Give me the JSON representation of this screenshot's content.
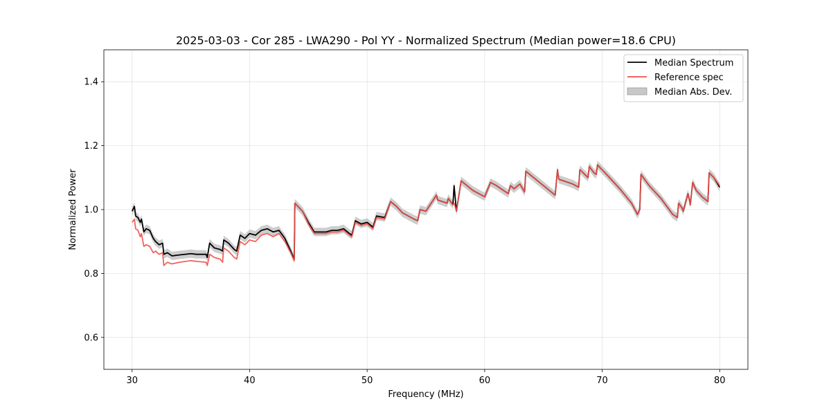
{
  "chart_data": {
    "type": "line",
    "title": "2025-03-03 - Cor 285 - LWA290 - Pol YY - Normalized Spectrum (Median power=18.6 CPU)",
    "xlabel": "Frequency (MHz)",
    "ylabel": "Normalized Power",
    "xlim": [
      27.6,
      82.4
    ],
    "ylim": [
      0.5,
      1.5
    ],
    "xticks": [
      30,
      40,
      50,
      60,
      70,
      80
    ],
    "yticks": [
      0.6,
      0.8,
      1.0,
      1.2,
      1.4
    ],
    "xtick_labels": [
      "30",
      "40",
      "50",
      "60",
      "70",
      "80"
    ],
    "ytick_labels": [
      "0.6",
      "0.8",
      "1.0",
      "1.2",
      "1.4"
    ],
    "grid": true,
    "legend": {
      "position": "top-right",
      "entries": [
        {
          "label": "Median Spectrum",
          "kind": "line",
          "color": "#000000"
        },
        {
          "label": "Reference spec",
          "kind": "line",
          "color": "#f0504a"
        },
        {
          "label": "Median Abs. Dev.",
          "kind": "band",
          "color": "#c8c8c8"
        }
      ]
    },
    "series": [
      {
        "name": "Median Spectrum",
        "color": "#000000",
        "x": [
          30.0,
          30.2,
          30.3,
          30.5,
          30.7,
          30.8,
          31.0,
          31.2,
          31.5,
          31.8,
          32.0,
          32.3,
          32.6,
          32.7,
          33.0,
          33.4,
          34.0,
          35.0,
          35.5,
          36.3,
          36.4,
          36.6,
          37.0,
          37.5,
          37.7,
          37.8,
          38.2,
          38.7,
          38.9,
          39.2,
          39.6,
          40.0,
          40.5,
          41.0,
          41.5,
          42.0,
          42.5,
          43.0,
          43.5,
          43.8,
          43.85,
          44.5,
          45.0,
          45.5,
          46.5,
          47.0,
          47.5,
          48.0,
          48.5,
          48.7,
          49.0,
          49.5,
          50.0,
          50.5,
          50.8,
          51.5,
          52.0,
          52.5,
          53.0,
          54.0,
          54.3,
          54.5,
          55.0,
          55.9,
          56.0,
          56.8,
          56.9,
          57.3,
          57.4,
          57.6,
          58.0,
          59.0,
          60.0,
          60.5,
          61.0,
          62.0,
          62.2,
          62.5,
          63.0,
          63.4,
          63.5,
          64.0,
          65.0,
          66.0,
          66.2,
          66.3,
          67.5,
          68.0,
          68.1,
          68.8,
          68.9,
          69.3,
          69.5,
          69.6,
          70.5,
          71.5,
          72.5,
          73.0,
          73.2,
          73.3,
          74.0,
          75.0,
          76.0,
          76.4,
          76.5,
          76.8,
          76.9,
          77.3,
          77.4,
          77.5,
          77.7,
          78.0,
          78.5,
          79.0,
          79.1,
          79.5,
          80.0
        ],
        "y": [
          0.995,
          1.01,
          0.98,
          0.975,
          0.96,
          0.97,
          0.93,
          0.94,
          0.935,
          0.91,
          0.9,
          0.89,
          0.895,
          0.86,
          0.865,
          0.855,
          0.858,
          0.862,
          0.86,
          0.86,
          0.85,
          0.895,
          0.88,
          0.875,
          0.87,
          0.905,
          0.895,
          0.875,
          0.87,
          0.92,
          0.91,
          0.925,
          0.92,
          0.935,
          0.94,
          0.93,
          0.935,
          0.91,
          0.87,
          0.845,
          1.02,
          0.995,
          0.96,
          0.93,
          0.93,
          0.935,
          0.935,
          0.94,
          0.925,
          0.92,
          0.965,
          0.955,
          0.96,
          0.945,
          0.98,
          0.975,
          1.025,
          1.01,
          0.99,
          0.97,
          0.965,
          1.0,
          0.995,
          1.045,
          1.03,
          1.02,
          1.035,
          1.015,
          1.075,
          0.995,
          1.09,
          1.06,
          1.04,
          1.085,
          1.075,
          1.05,
          1.075,
          1.065,
          1.08,
          1.055,
          1.12,
          1.105,
          1.075,
          1.045,
          1.125,
          1.095,
          1.08,
          1.07,
          1.125,
          1.1,
          1.135,
          1.115,
          1.11,
          1.14,
          1.105,
          1.065,
          1.02,
          0.985,
          1.0,
          1.11,
          1.075,
          1.035,
          0.985,
          0.975,
          1.02,
          1.005,
          0.995,
          1.05,
          1.035,
          1.015,
          1.085,
          1.06,
          1.04,
          1.025,
          1.115,
          1.1,
          1.07
        ]
      },
      {
        "name": "Reference spec",
        "color": "#f0504a",
        "x": [
          30.0,
          30.2,
          30.3,
          30.5,
          30.7,
          30.8,
          31.0,
          31.2,
          31.5,
          31.8,
          32.0,
          32.3,
          32.6,
          32.7,
          33.0,
          33.4,
          34.0,
          35.0,
          35.5,
          36.3,
          36.4,
          36.6,
          37.0,
          37.5,
          37.7,
          37.8,
          38.2,
          38.7,
          38.9,
          39.2,
          39.6,
          40.0,
          40.5,
          41.0,
          41.5,
          42.0,
          42.5,
          43.0,
          43.5,
          43.8,
          43.85,
          44.5,
          45.0,
          45.5,
          46.5,
          47.0,
          47.5,
          48.0,
          48.5,
          48.7,
          49.0,
          49.5,
          50.0,
          50.5,
          50.8,
          51.5,
          52.0,
          52.5,
          53.0,
          54.0,
          54.3,
          54.5,
          55.0,
          55.9,
          56.0,
          56.8,
          56.9,
          57.3,
          57.4,
          57.6,
          58.0,
          59.0,
          60.0,
          60.5,
          61.0,
          62.0,
          62.2,
          62.5,
          63.0,
          63.4,
          63.5,
          64.0,
          65.0,
          66.0,
          66.2,
          66.3,
          67.5,
          68.0,
          68.1,
          68.8,
          68.9,
          69.3,
          69.5,
          69.6,
          70.5,
          71.5,
          72.5,
          73.0,
          73.2,
          73.3,
          74.0,
          75.0,
          76.0,
          76.4,
          76.5,
          76.8,
          76.9,
          77.3,
          77.4,
          77.5,
          77.7,
          78.0,
          78.5,
          79.0,
          79.1,
          79.5,
          80.0
        ],
        "y": [
          0.96,
          0.97,
          0.94,
          0.935,
          0.915,
          0.925,
          0.885,
          0.89,
          0.885,
          0.865,
          0.87,
          0.86,
          0.865,
          0.825,
          0.835,
          0.83,
          0.835,
          0.84,
          0.838,
          0.835,
          0.825,
          0.86,
          0.85,
          0.845,
          0.835,
          0.88,
          0.87,
          0.85,
          0.845,
          0.9,
          0.89,
          0.905,
          0.9,
          0.92,
          0.925,
          0.915,
          0.925,
          0.9,
          0.865,
          0.84,
          1.02,
          0.995,
          0.955,
          0.925,
          0.925,
          0.93,
          0.93,
          0.935,
          0.92,
          0.915,
          0.96,
          0.95,
          0.955,
          0.94,
          0.975,
          0.97,
          1.025,
          1.01,
          0.99,
          0.97,
          0.965,
          1.0,
          0.995,
          1.045,
          1.03,
          1.02,
          1.035,
          1.015,
          1.02,
          0.995,
          1.09,
          1.06,
          1.04,
          1.085,
          1.075,
          1.05,
          1.075,
          1.065,
          1.08,
          1.055,
          1.12,
          1.105,
          1.075,
          1.045,
          1.125,
          1.095,
          1.08,
          1.07,
          1.125,
          1.1,
          1.135,
          1.115,
          1.11,
          1.14,
          1.105,
          1.065,
          1.02,
          0.985,
          1.0,
          1.11,
          1.075,
          1.035,
          0.985,
          0.975,
          1.02,
          1.005,
          0.995,
          1.05,
          1.035,
          1.015,
          1.085,
          1.06,
          1.04,
          1.025,
          1.115,
          1.1,
          1.075
        ]
      }
    ],
    "band": {
      "name": "Median Abs. Dev.",
      "color": "#c8c8c8",
      "half_width": 0.013
    }
  }
}
